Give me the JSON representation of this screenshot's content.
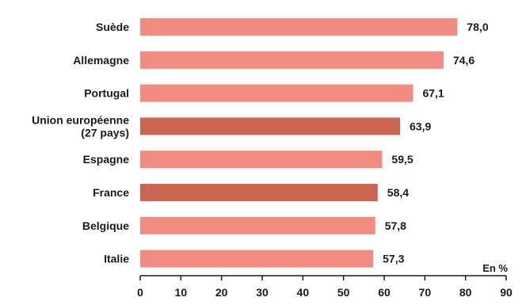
{
  "chart_data": {
    "type": "bar",
    "orientation": "horizontal",
    "categories": [
      [
        "Suède"
      ],
      [
        "Allemagne"
      ],
      [
        "Portugal"
      ],
      [
        "Union européenne",
        "(27 pays)"
      ],
      [
        "Espagne"
      ],
      [
        "France"
      ],
      [
        "Belgique"
      ],
      [
        "Italie"
      ]
    ],
    "values": [
      78.0,
      74.6,
      67.1,
      63.9,
      59.5,
      58.4,
      57.8,
      57.3
    ],
    "value_labels": [
      "78,0",
      "74,6",
      "67,1",
      "63,9",
      "59,5",
      "58,4",
      "57,8",
      "57,3"
    ],
    "highlighted": [
      false,
      false,
      false,
      true,
      false,
      true,
      false,
      false
    ],
    "xlim": [
      0,
      90
    ],
    "xticks": [
      0,
      10,
      20,
      30,
      40,
      50,
      60,
      70,
      80,
      90
    ],
    "unit_label": "En %",
    "grid": false,
    "colors": {
      "bar": "#f28b80",
      "bar_highlight": "#cb6552",
      "axis": "#1a1a1a",
      "text": "#1a1a1a"
    }
  }
}
